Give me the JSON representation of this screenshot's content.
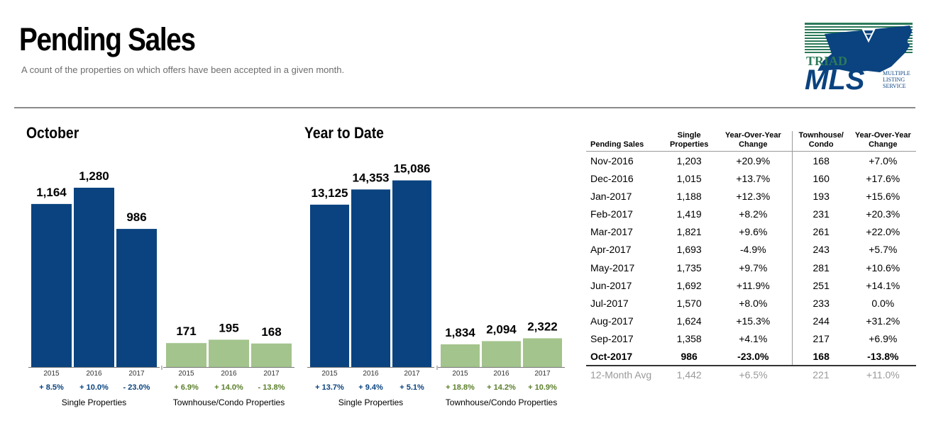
{
  "header": {
    "title": "Pending Sales",
    "subtitle": "A count of the properties on which offers have been accepted in a given month."
  },
  "logo": {
    "line1": "TRIAD",
    "line2": "MLS",
    "tag1": "MULTIPLE",
    "tag2": "LISTING",
    "tag3": "SERVICE"
  },
  "colors": {
    "single": "#0a437f",
    "townhouse": "#a3c48c",
    "change_single": "#0a437f",
    "change_townhouse": "#5b7f2b"
  },
  "chart_data": [
    {
      "type": "bar",
      "title": "October",
      "groups": [
        {
          "name": "Single Properties",
          "categories": [
            "2015",
            "2016",
            "2017"
          ],
          "values": [
            1164,
            1280,
            986
          ],
          "value_labels": [
            "1,164",
            "1,280",
            "986"
          ],
          "changes": [
            "+ 8.5%",
            "+ 10.0%",
            "- 23.0%"
          ]
        },
        {
          "name": "Townhouse/Condo Properties",
          "categories": [
            "2015",
            "2016",
            "2017"
          ],
          "values": [
            171,
            195,
            168
          ],
          "value_labels": [
            "171",
            "195",
            "168"
          ],
          "changes": [
            "+ 6.9%",
            "+ 14.0%",
            "- 13.8%"
          ]
        }
      ]
    },
    {
      "type": "bar",
      "title": "Year to Date",
      "groups": [
        {
          "name": "Single Properties",
          "categories": [
            "2015",
            "2016",
            "2017"
          ],
          "values": [
            13125,
            14353,
            15086
          ],
          "value_labels": [
            "13,125",
            "14,353",
            "15,086"
          ],
          "changes": [
            "+ 13.7%",
            "+ 9.4%",
            "+ 5.1%"
          ]
        },
        {
          "name": "Townhouse/Condo Properties",
          "categories": [
            "2015",
            "2016",
            "2017"
          ],
          "values": [
            1834,
            2094,
            2322
          ],
          "value_labels": [
            "1,834",
            "2,094",
            "2,322"
          ],
          "changes": [
            "+ 18.8%",
            "+ 14.2%",
            "+ 10.9%"
          ]
        }
      ]
    },
    {
      "type": "table",
      "columns": [
        "Pending Sales",
        "Single Properties",
        "Year-Over-Year Change",
        "Townhouse/ Condo",
        "Year-Over-Year Change"
      ],
      "rows": [
        [
          "Nov-2016",
          "1,203",
          "+20.9%",
          "168",
          "+7.0%"
        ],
        [
          "Dec-2016",
          "1,015",
          "+13.7%",
          "160",
          "+17.6%"
        ],
        [
          "Jan-2017",
          "1,188",
          "+12.3%",
          "193",
          "+15.6%"
        ],
        [
          "Feb-2017",
          "1,419",
          "+8.2%",
          "231",
          "+20.3%"
        ],
        [
          "Mar-2017",
          "1,821",
          "+9.6%",
          "261",
          "+22.0%"
        ],
        [
          "Apr-2017",
          "1,693",
          "-4.9%",
          "243",
          "+5.7%"
        ],
        [
          "May-2017",
          "1,735",
          "+9.7%",
          "281",
          "+10.6%"
        ],
        [
          "Jun-2017",
          "1,692",
          "+11.9%",
          "251",
          "+14.1%"
        ],
        [
          "Jul-2017",
          "1,570",
          "+8.0%",
          "233",
          "0.0%"
        ],
        [
          "Aug-2017",
          "1,624",
          "+15.3%",
          "244",
          "+31.2%"
        ],
        [
          "Sep-2017",
          "1,358",
          "+4.1%",
          "217",
          "+6.9%"
        ],
        [
          "Oct-2017",
          "986",
          "-23.0%",
          "168",
          "-13.8%"
        ]
      ],
      "highlight_row": "Oct-2017",
      "summary_row": [
        "12-Month Avg",
        "1,442",
        "+6.5%",
        "221",
        "+11.0%"
      ]
    }
  ]
}
